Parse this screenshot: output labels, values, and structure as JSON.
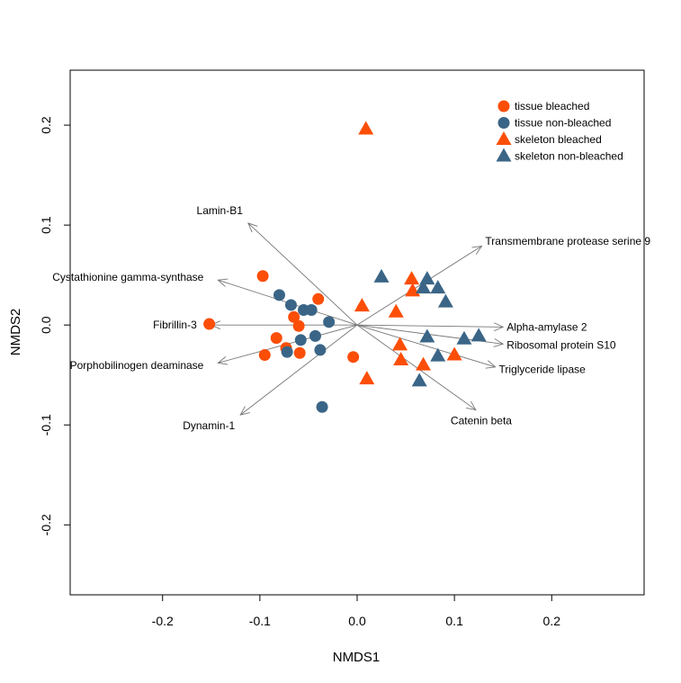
{
  "chart_data": {
    "type": "scatter",
    "title": "",
    "xlabel": "NMDS1",
    "ylabel": "NMDS2",
    "xlim": [
      -0.295,
      0.295
    ],
    "ylim": [
      -0.27,
      0.255
    ],
    "x_ticks": [
      -0.2,
      -0.1,
      0.0,
      0.1,
      0.2
    ],
    "x_tick_labels": [
      "-0.2",
      "-0.1",
      "0.0",
      "0.1",
      "0.2"
    ],
    "y_ticks": [
      -0.2,
      -0.1,
      0.0,
      0.1,
      0.2
    ],
    "y_tick_labels": [
      "-0.2",
      "-0.1",
      "0.0",
      "0.1",
      "0.2"
    ],
    "grid": false,
    "legend_position": "top-right",
    "colors": {
      "bleached": "#FC4E07",
      "non_bleached": "#3A6587",
      "arrow": "#777777"
    },
    "series": [
      {
        "name": "tissue bleached",
        "marker": "circle",
        "color": "#FC4E07",
        "points": [
          {
            "x": -0.097,
            "y": 0.049
          },
          {
            "x": -0.152,
            "y": 0.001
          },
          {
            "x": -0.095,
            "y": -0.03
          },
          {
            "x": -0.083,
            "y": -0.013
          },
          {
            "x": -0.073,
            "y": -0.023
          },
          {
            "x": -0.065,
            "y": 0.008
          },
          {
            "x": -0.06,
            "y": -0.001
          },
          {
            "x": -0.059,
            "y": -0.028
          },
          {
            "x": -0.04,
            "y": 0.026
          },
          {
            "x": -0.004,
            "y": -0.032
          }
        ]
      },
      {
        "name": "tissue non-bleached",
        "marker": "circle",
        "color": "#3A6587",
        "points": [
          {
            "x": -0.08,
            "y": 0.03
          },
          {
            "x": -0.068,
            "y": 0.02
          },
          {
            "x": -0.055,
            "y": 0.015
          },
          {
            "x": -0.047,
            "y": 0.015
          },
          {
            "x": -0.029,
            "y": 0.003
          },
          {
            "x": -0.043,
            "y": -0.011
          },
          {
            "x": -0.058,
            "y": -0.015
          },
          {
            "x": -0.072,
            "y": -0.027
          },
          {
            "x": -0.038,
            "y": -0.025
          },
          {
            "x": -0.036,
            "y": -0.082
          }
        ]
      },
      {
        "name": "skeleton bleached",
        "marker": "triangle",
        "color": "#FC4E07",
        "points": [
          {
            "x": 0.009,
            "y": 0.196
          },
          {
            "x": 0.005,
            "y": 0.019
          },
          {
            "x": 0.04,
            "y": 0.013
          },
          {
            "x": 0.056,
            "y": 0.046
          },
          {
            "x": 0.057,
            "y": 0.034
          },
          {
            "x": 0.044,
            "y": -0.02
          },
          {
            "x": 0.045,
            "y": -0.035
          },
          {
            "x": 0.068,
            "y": -0.04
          },
          {
            "x": 0.1,
            "y": -0.03
          },
          {
            "x": 0.01,
            "y": -0.054
          }
        ]
      },
      {
        "name": "skeleton non-bleached",
        "marker": "triangle",
        "color": "#3A6587",
        "points": [
          {
            "x": 0.025,
            "y": 0.048
          },
          {
            "x": 0.072,
            "y": 0.046
          },
          {
            "x": 0.068,
            "y": 0.037
          },
          {
            "x": 0.083,
            "y": 0.037
          },
          {
            "x": 0.091,
            "y": 0.023
          },
          {
            "x": 0.072,
            "y": -0.012
          },
          {
            "x": 0.11,
            "y": -0.014
          },
          {
            "x": 0.125,
            "y": -0.011
          },
          {
            "x": 0.083,
            "y": -0.031
          },
          {
            "x": 0.064,
            "y": -0.056
          }
        ]
      }
    ],
    "vectors": [
      {
        "label": "Lamin-B1",
        "x": -0.112,
        "y": 0.102
      },
      {
        "label": "Transmembrane protease serine 9",
        "x": 0.128,
        "y": 0.079
      },
      {
        "label": "Cystathionine gamma-synthase",
        "x": -0.143,
        "y": 0.045
      },
      {
        "label": "Fibrillin-3",
        "x": -0.15,
        "y": 0.0
      },
      {
        "label": "Alpha-amylase 2",
        "x": 0.15,
        "y": -0.002
      },
      {
        "label": "Ribosomal protein S10",
        "x": 0.15,
        "y": -0.019
      },
      {
        "label": "Porphobilinogen deaminase",
        "x": -0.143,
        "y": -0.038
      },
      {
        "label": "Triglyceride lipase",
        "x": 0.142,
        "y": -0.042
      },
      {
        "label": "Dynamin-1",
        "x": -0.12,
        "y": -0.09
      },
      {
        "label": "Catenin beta",
        "x": 0.122,
        "y": -0.085
      }
    ]
  }
}
